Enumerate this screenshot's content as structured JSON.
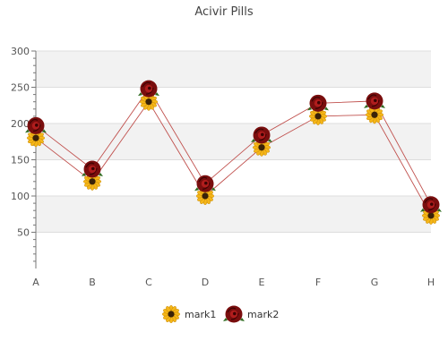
{
  "chart_data": {
    "type": "line",
    "title": "Acivir Pills",
    "xlabel": "",
    "ylabel": "",
    "categories": [
      "A",
      "B",
      "C",
      "D",
      "E",
      "F",
      "G",
      "H"
    ],
    "ylim": [
      0,
      300
    ],
    "yticks": [
      50,
      100,
      150,
      200,
      250,
      300
    ],
    "grid": true,
    "legend_position": "bottom",
    "series": [
      {
        "name": "mark1",
        "values": [
          180,
          120,
          230,
          100,
          167,
          210,
          212,
          73
        ],
        "color": "#c0504d",
        "marker": "sunflower-icon"
      },
      {
        "name": "mark2",
        "values": [
          197,
          137,
          248,
          117,
          184,
          228,
          231,
          88
        ],
        "color": "#c0504d",
        "marker": "rose-icon"
      }
    ]
  },
  "colors": {
    "band": "#f2f2f2",
    "gridline": "#dddddd",
    "axis": "#777777"
  }
}
